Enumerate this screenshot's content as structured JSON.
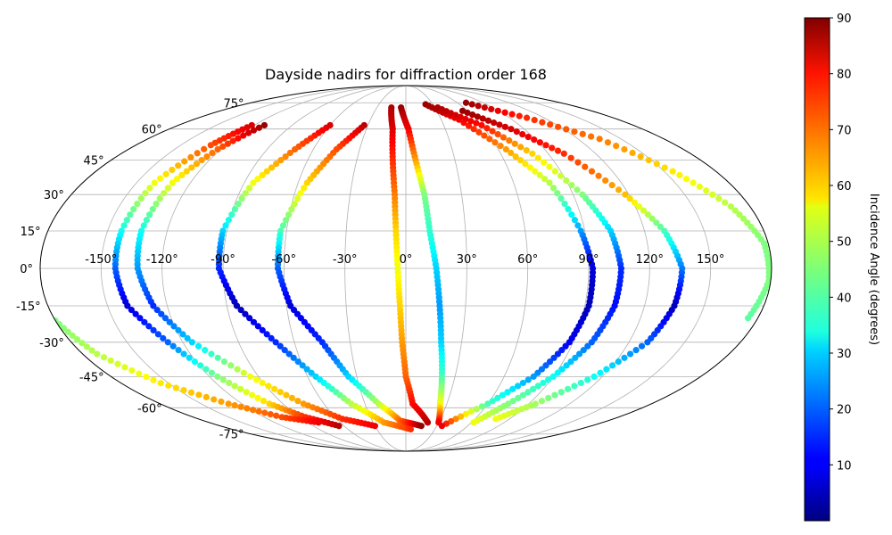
{
  "chart_data": {
    "type": "scatter",
    "title": "Dayside nadirs for diffraction order 168",
    "projection": "mollweide",
    "grid": true,
    "xlabel": "",
    "ylabel": "",
    "xlim": [
      -180,
      180
    ],
    "ylim": [
      -90,
      90
    ],
    "lon_ticks": [
      {
        "value": -150,
        "label": "-150°"
      },
      {
        "value": -120,
        "label": "-120°"
      },
      {
        "value": -90,
        "label": "-90°"
      },
      {
        "value": -60,
        "label": "-60°"
      },
      {
        "value": -30,
        "label": "-30°"
      },
      {
        "value": 0,
        "label": "0°"
      },
      {
        "value": 30,
        "label": "30°"
      },
      {
        "value": 60,
        "label": "60°"
      },
      {
        "value": 90,
        "label": "90°"
      },
      {
        "value": 120,
        "label": "120°"
      },
      {
        "value": 150,
        "label": "150°"
      }
    ],
    "lat_ticks": [
      {
        "value": 75,
        "label": "75°"
      },
      {
        "value": 60,
        "label": "60°"
      },
      {
        "value": 45,
        "label": "45°"
      },
      {
        "value": 30,
        "label": "30°"
      },
      {
        "value": 15,
        "label": "15°"
      },
      {
        "value": 0,
        "label": "0°"
      },
      {
        "value": -15,
        "label": "-15°"
      },
      {
        "value": -30,
        "label": "-30°"
      },
      {
        "value": -45,
        "label": "-45°"
      },
      {
        "value": -60,
        "label": "-60°"
      },
      {
        "value": -75,
        "label": "-75°"
      }
    ],
    "colorbar": {
      "label": "Incidence Angle (degrees)",
      "colormap": "jet",
      "range": [
        0,
        90
      ],
      "ticks": [
        {
          "value": 10,
          "label": "10"
        },
        {
          "value": 20,
          "label": "20"
        },
        {
          "value": 30,
          "label": "30"
        },
        {
          "value": 40,
          "label": "40"
        },
        {
          "value": 50,
          "label": "50"
        },
        {
          "value": 60,
          "label": "60"
        },
        {
          "value": 70,
          "label": "70"
        },
        {
          "value": 80,
          "label": "80"
        },
        {
          "value": 90,
          "label": "90"
        }
      ]
    },
    "series": [
      {
        "points": [
          {
            "lon": -122,
            "lat": 62,
            "incidence": 82
          },
          {
            "lon": -130,
            "lat": 52,
            "incidence": 72
          },
          {
            "lon": -140,
            "lat": 35,
            "incidence": 55
          },
          {
            "lon": -143,
            "lat": 15,
            "incidence": 35
          },
          {
            "lon": -143,
            "lat": 0,
            "incidence": 20
          },
          {
            "lon": -140,
            "lat": -15,
            "incidence": 8
          },
          {
            "lon": -128,
            "lat": -30,
            "incidence": 20
          },
          {
            "lon": -115,
            "lat": -45,
            "incidence": 45
          },
          {
            "lon": -100,
            "lat": -58,
            "incidence": 60
          },
          {
            "lon": -85,
            "lat": -65,
            "incidence": 75
          },
          {
            "lon": -65,
            "lat": -70,
            "incidence": 85
          }
        ]
      },
      {
        "points": [
          {
            "lon": -112,
            "lat": 62,
            "incidence": 88
          },
          {
            "lon": -122,
            "lat": 50,
            "incidence": 70
          },
          {
            "lon": -130,
            "lat": 35,
            "incidence": 55
          },
          {
            "lon": -133,
            "lat": 15,
            "incidence": 35
          },
          {
            "lon": -132,
            "lat": 0,
            "incidence": 25
          },
          {
            "lon": -127,
            "lat": -15,
            "incidence": 15
          },
          {
            "lon": -115,
            "lat": -30,
            "incidence": 30
          },
          {
            "lon": -95,
            "lat": -45,
            "incidence": 55
          },
          {
            "lon": -75,
            "lat": -58,
            "incidence": 65
          },
          {
            "lon": -55,
            "lat": -66,
            "incidence": 75
          },
          {
            "lon": -30,
            "lat": -70,
            "incidence": 80
          }
        ]
      },
      {
        "points": [
          {
            "lon": -60,
            "lat": 62,
            "incidence": 82
          },
          {
            "lon": -72,
            "lat": 50,
            "incidence": 70
          },
          {
            "lon": -85,
            "lat": 35,
            "incidence": 55
          },
          {
            "lon": -92,
            "lat": 15,
            "incidence": 30
          },
          {
            "lon": -92,
            "lat": 0,
            "incidence": 15
          },
          {
            "lon": -85,
            "lat": -15,
            "incidence": 5
          },
          {
            "lon": -70,
            "lat": -30,
            "incidence": 15
          },
          {
            "lon": -55,
            "lat": -45,
            "incidence": 30
          },
          {
            "lon": -40,
            "lat": -58,
            "incidence": 50
          },
          {
            "lon": -20,
            "lat": -68,
            "incidence": 65
          },
          {
            "lon": 5,
            "lat": -72,
            "incidence": 75
          }
        ]
      },
      {
        "points": [
          {
            "lon": -33,
            "lat": 62,
            "incidence": 85
          },
          {
            "lon": -45,
            "lat": 50,
            "incidence": 72
          },
          {
            "lon": -55,
            "lat": 35,
            "incidence": 60
          },
          {
            "lon": -63,
            "lat": 15,
            "incidence": 40
          },
          {
            "lon": -63,
            "lat": 0,
            "incidence": 20
          },
          {
            "lon": -58,
            "lat": -15,
            "incidence": 8
          },
          {
            "lon": -45,
            "lat": -30,
            "incidence": 15
          },
          {
            "lon": -35,
            "lat": -45,
            "incidence": 30
          },
          {
            "lon": -20,
            "lat": -58,
            "incidence": 50
          },
          {
            "lon": -5,
            "lat": -67,
            "incidence": 70
          },
          {
            "lon": 15,
            "lat": -70,
            "incidence": 88
          }
        ]
      },
      {
        "points": [
          {
            "lon": -15,
            "lat": 72,
            "incidence": 86
          },
          {
            "lon": -10,
            "lat": 60,
            "incidence": 82
          },
          {
            "lon": -8,
            "lat": 45,
            "incidence": 75
          },
          {
            "lon": -6,
            "lat": 30,
            "incidence": 68
          },
          {
            "lon": -5,
            "lat": 15,
            "incidence": 60
          },
          {
            "lon": -4,
            "lat": 0,
            "incidence": 55
          },
          {
            "lon": -3,
            "lat": -15,
            "incidence": 60
          },
          {
            "lon": -2,
            "lat": -30,
            "incidence": 65
          },
          {
            "lon": 0,
            "lat": -45,
            "incidence": 70
          },
          {
            "lon": 5,
            "lat": -58,
            "incidence": 78
          },
          {
            "lon": 20,
            "lat": -68,
            "incidence": 85
          }
        ]
      },
      {
        "points": [
          {
            "lon": -5,
            "lat": 72,
            "incidence": 88
          },
          {
            "lon": 2,
            "lat": 60,
            "incidence": 80
          },
          {
            "lon": 6,
            "lat": 45,
            "incidence": 65
          },
          {
            "lon": 10,
            "lat": 30,
            "incidence": 45
          },
          {
            "lon": 12,
            "lat": 15,
            "incidence": 38
          },
          {
            "lon": 15,
            "lat": 0,
            "incidence": 30
          },
          {
            "lon": 17,
            "lat": -15,
            "incidence": 25
          },
          {
            "lon": 19,
            "lat": -30,
            "incidence": 30
          },
          {
            "lon": 22,
            "lat": -45,
            "incidence": 40
          },
          {
            "lon": 25,
            "lat": -58,
            "incidence": 55
          },
          {
            "lon": 30,
            "lat": -68,
            "incidence": 80
          }
        ]
      },
      {
        "points": [
          {
            "lon": 22,
            "lat": 74,
            "incidence": 88
          },
          {
            "lon": 45,
            "lat": 65,
            "incidence": 80
          },
          {
            "lon": 65,
            "lat": 50,
            "incidence": 65
          },
          {
            "lon": 80,
            "lat": 35,
            "incidence": 50
          },
          {
            "lon": 88,
            "lat": 15,
            "incidence": 25
          },
          {
            "lon": 92,
            "lat": 0,
            "incidence": 8
          },
          {
            "lon": 92,
            "lat": -15,
            "incidence": 5
          },
          {
            "lon": 88,
            "lat": -30,
            "incidence": 10
          },
          {
            "lon": 78,
            "lat": -45,
            "incidence": 25
          },
          {
            "lon": 60,
            "lat": -58,
            "incidence": 40
          },
          {
            "lon": 35,
            "lat": -70,
            "incidence": 80
          }
        ]
      },
      {
        "points": [
          {
            "lon": 33,
            "lat": 72,
            "incidence": 86
          },
          {
            "lon": 60,
            "lat": 62,
            "incidence": 78
          },
          {
            "lon": 80,
            "lat": 48,
            "incidence": 60
          },
          {
            "lon": 95,
            "lat": 30,
            "incidence": 45
          },
          {
            "lon": 103,
            "lat": 15,
            "incidence": 30
          },
          {
            "lon": 106,
            "lat": 0,
            "incidence": 15
          },
          {
            "lon": 105,
            "lat": -15,
            "incidence": 12
          },
          {
            "lon": 100,
            "lat": -30,
            "incidence": 20
          },
          {
            "lon": 90,
            "lat": -45,
            "incidence": 35
          },
          {
            "lon": 75,
            "lat": -58,
            "incidence": 45
          },
          {
            "lon": 62,
            "lat": -68,
            "incidence": 55
          }
        ]
      },
      {
        "points": [
          {
            "lon": 55,
            "lat": 70,
            "incidence": 88
          },
          {
            "lon": 80,
            "lat": 60,
            "incidence": 82
          },
          {
            "lon": 100,
            "lat": 48,
            "incidence": 75
          },
          {
            "lon": 118,
            "lat": 30,
            "incidence": 62
          },
          {
            "lon": 130,
            "lat": 15,
            "incidence": 40
          },
          {
            "lon": 136,
            "lat": 0,
            "incidence": 22
          },
          {
            "lon": 135,
            "lat": -15,
            "incidence": 5
          },
          {
            "lon": 130,
            "lat": -30,
            "incidence": 20
          },
          {
            "lon": 115,
            "lat": -45,
            "incidence": 35
          },
          {
            "lon": 95,
            "lat": -58,
            "incidence": 48
          },
          {
            "lon": 78,
            "lat": -66,
            "incidence": 55
          }
        ]
      },
      {
        "points": [
          {
            "lon": 70,
            "lat": 75,
            "incidence": 88
          },
          {
            "lon": 105,
            "lat": 66,
            "incidence": 75
          },
          {
            "lon": 135,
            "lat": 55,
            "incidence": 68
          },
          {
            "lon": 155,
            "lat": 40,
            "incidence": 58
          },
          {
            "lon": 170,
            "lat": 25,
            "incidence": 50
          },
          {
            "lon": 178,
            "lat": 10,
            "incidence": 45
          },
          {
            "lon": 179,
            "lat": -5,
            "incidence": 45
          },
          {
            "lon": 175,
            "lat": -20,
            "incidence": 42
          }
        ]
      },
      {
        "points": [
          {
            "lon": -180,
            "lat": -21,
            "incidence": 45
          },
          {
            "lon": -172,
            "lat": -35,
            "incidence": 50
          },
          {
            "lon": -155,
            "lat": -48,
            "incidence": 58
          },
          {
            "lon": -130,
            "lat": -58,
            "incidence": 65
          },
          {
            "lon": -105,
            "lat": -65,
            "incidence": 72
          },
          {
            "lon": -80,
            "lat": -68,
            "incidence": 80
          }
        ]
      }
    ]
  }
}
